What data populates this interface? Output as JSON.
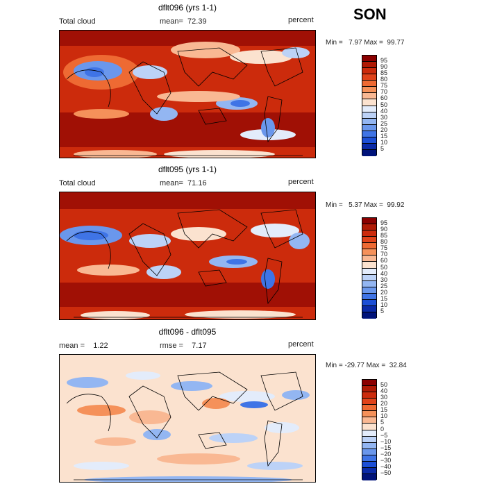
{
  "season": "SON",
  "panels": [
    {
      "title": "dflt096 (yrs 1-1)",
      "left_label": "Total cloud",
      "center_label": "mean=  72.39",
      "right_label": "percent",
      "minmax": "Min =   7.97 Max =  99.77",
      "levels": [
        "95",
        "90",
        "85",
        "80",
        "75",
        "70",
        "60",
        "50",
        "40",
        "30",
        "25",
        "20",
        "15",
        "10",
        "5"
      ],
      "colors": [
        "#8b0000",
        "#b01a05",
        "#cc2b0c",
        "#e0431a",
        "#ee6a33",
        "#f5915a",
        "#f9b893",
        "#fbe2cf",
        "#e3ecfb",
        "#bcd2f7",
        "#93b6f2",
        "#6a97ec",
        "#3f74e6",
        "#1c4fd6",
        "#0a2aa8",
        "#00137a"
      ]
    },
    {
      "title": "dflt095 (yrs 1-1)",
      "left_label": "Total cloud",
      "center_label": "mean=  71.16",
      "right_label": "percent",
      "minmax": "Min =   5.37 Max =  99.92",
      "levels": [
        "95",
        "90",
        "85",
        "80",
        "75",
        "70",
        "60",
        "50",
        "40",
        "30",
        "25",
        "20",
        "15",
        "10",
        "5"
      ],
      "colors": [
        "#8b0000",
        "#b01a05",
        "#cc2b0c",
        "#e0431a",
        "#ee6a33",
        "#f5915a",
        "#f9b893",
        "#fbe2cf",
        "#e3ecfb",
        "#bcd2f7",
        "#93b6f2",
        "#6a97ec",
        "#3f74e6",
        "#1c4fd6",
        "#0a2aa8",
        "#00137a"
      ]
    },
    {
      "title": "dflt096 - dflt095",
      "left_label": "mean =    1.22",
      "center_label": "rmse =    7.17",
      "right_label": "percent",
      "minmax": "Min = -29.77 Max =  32.84",
      "levels": [
        "50",
        "40",
        "30",
        "20",
        "15",
        "10",
        "5",
        "0",
        "−5",
        "−10",
        "−15",
        "−20",
        "−30",
        "−40",
        "−50"
      ],
      "colors": [
        "#8b0000",
        "#b01a05",
        "#cc2b0c",
        "#e0431a",
        "#ee6a33",
        "#f5915a",
        "#f9b893",
        "#fbe2cf",
        "#e3ecfb",
        "#bcd2f7",
        "#93b6f2",
        "#6a97ec",
        "#3f74e6",
        "#1c4fd6",
        "#0a2aa8",
        "#00137a"
      ]
    }
  ]
}
